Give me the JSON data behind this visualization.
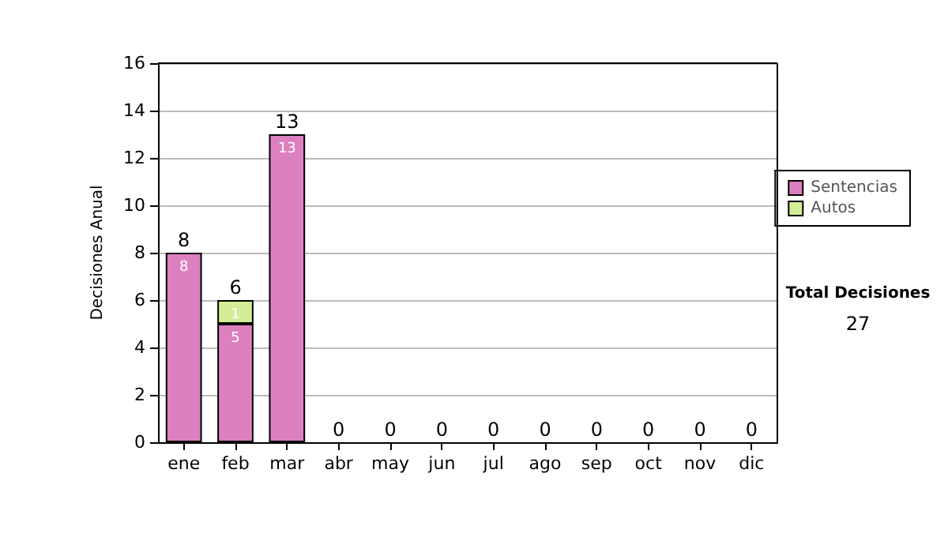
{
  "chart_data": {
    "type": "bar",
    "stacked": true,
    "ylabel": "Decisiones Anual",
    "categories": [
      "ene",
      "feb",
      "mar",
      "abr",
      "may",
      "jun",
      "jul",
      "ago",
      "sep",
      "oct",
      "nov",
      "dic"
    ],
    "series": [
      {
        "name": "Sentencias",
        "color": "#dc80c0",
        "values": [
          8,
          5,
          13,
          0,
          0,
          0,
          0,
          0,
          0,
          0,
          0,
          0
        ],
        "value_labels": [
          "8",
          "5",
          "13",
          null,
          null,
          null,
          null,
          null,
          null,
          null,
          null,
          null
        ]
      },
      {
        "name": "Autos",
        "color": "#d4ee98",
        "values": [
          0,
          1,
          0,
          0,
          0,
          0,
          0,
          0,
          0,
          0,
          0,
          0
        ],
        "value_labels": [
          null,
          "1",
          null,
          null,
          null,
          null,
          null,
          null,
          null,
          null,
          null,
          null
        ]
      }
    ],
    "totals": [
      "8",
      "6",
      "13",
      "0",
      "0",
      "0",
      "0",
      "0",
      "0",
      "0",
      "0",
      "0"
    ],
    "ylim": [
      0,
      16
    ],
    "yticks": [
      0,
      2,
      4,
      6,
      8,
      10,
      12,
      14,
      16
    ],
    "grid": "y",
    "legend": "right",
    "annotations": [
      "Total Decisiones",
      "27"
    ]
  }
}
